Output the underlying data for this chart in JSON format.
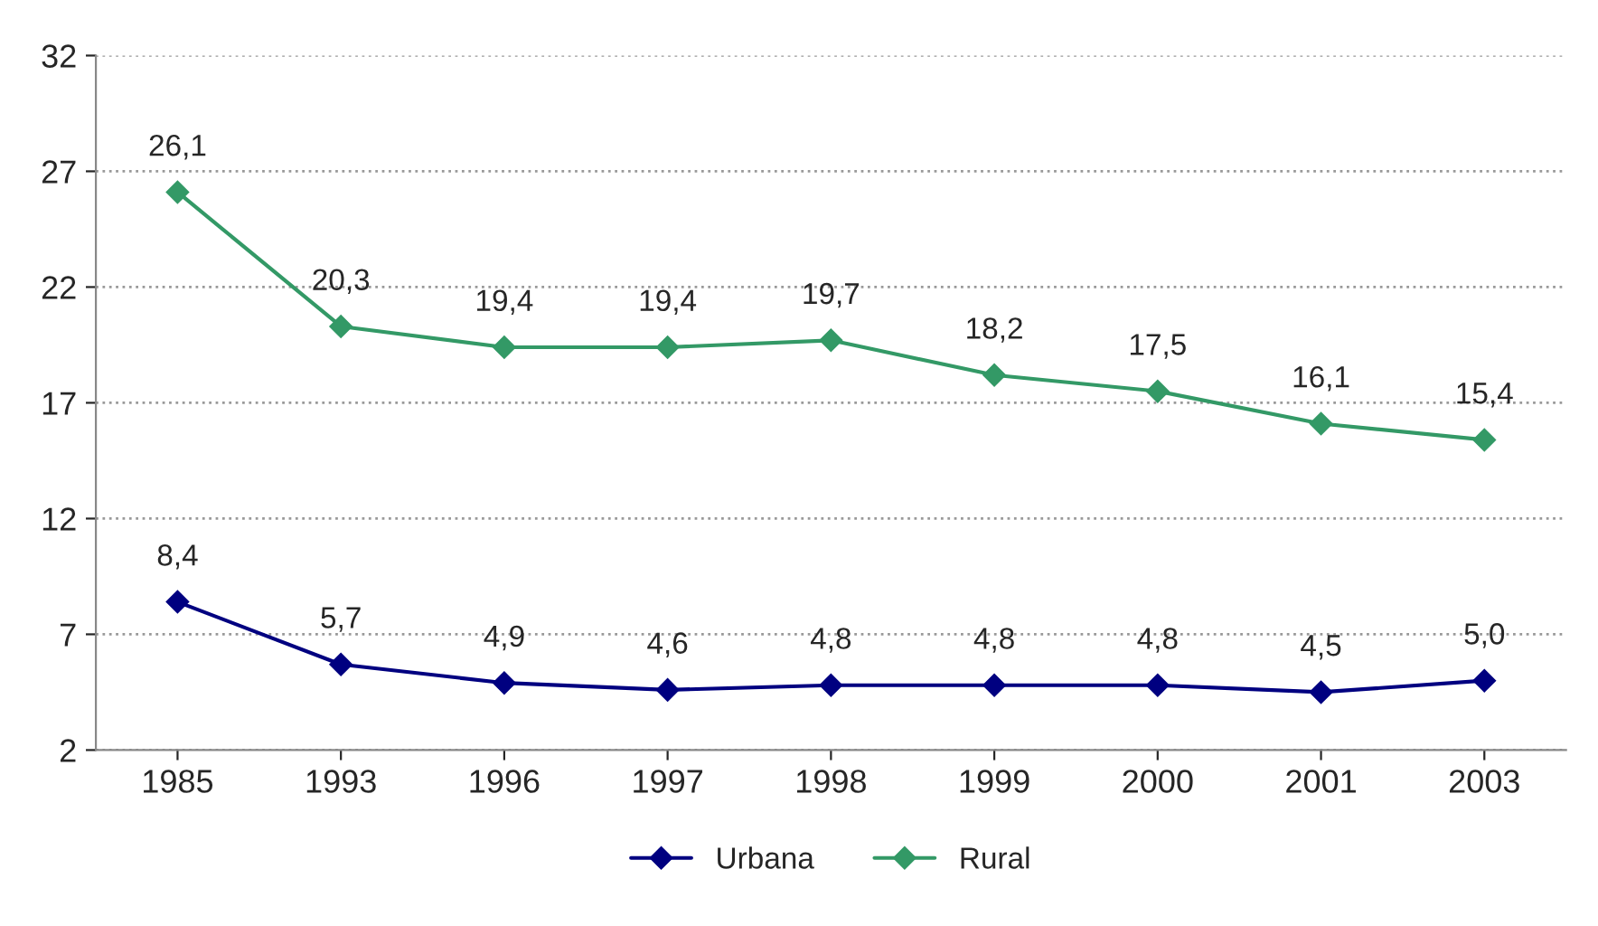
{
  "chart_data": {
    "type": "line",
    "categories": [
      "1985",
      "1993",
      "1996",
      "1997",
      "1998",
      "1999",
      "2000",
      "2001",
      "2003"
    ],
    "series": [
      {
        "name": "Urbana",
        "color": "#000080",
        "values": [
          8.4,
          5.7,
          4.9,
          4.6,
          4.8,
          4.8,
          4.8,
          4.5,
          5.0
        ],
        "value_labels": [
          "8,4",
          "5,7",
          "4,9",
          "4,6",
          "4,8",
          "4,8",
          "4,8",
          "4,5",
          "5,0"
        ]
      },
      {
        "name": "Rural",
        "color": "#339966",
        "values": [
          26.1,
          20.3,
          19.4,
          19.4,
          19.7,
          18.2,
          17.5,
          16.1,
          15.4
        ],
        "value_labels": [
          "26,1",
          "20,3",
          "19,4",
          "19,4",
          "19,7",
          "18,2",
          "17,5",
          "16,1",
          "15,4"
        ]
      }
    ],
    "ylim": [
      2,
      32
    ],
    "yticks": [
      2,
      7,
      12,
      17,
      22,
      27,
      32
    ],
    "grid": "y",
    "legend": "bottom",
    "marker": "diamond",
    "line_style": "solid"
  }
}
